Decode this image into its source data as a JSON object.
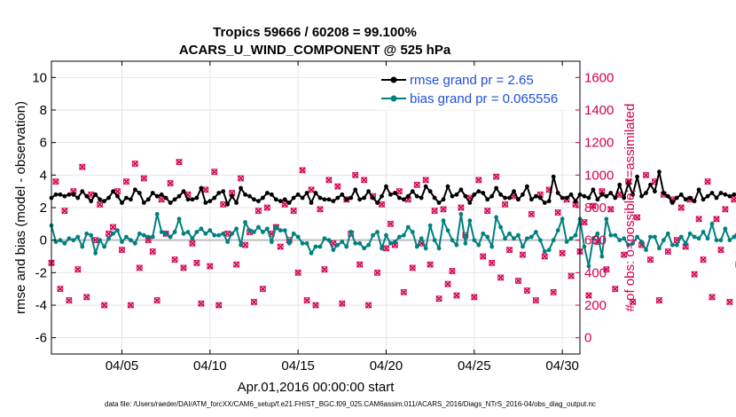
{
  "chart_data": {
    "type": "line",
    "title": "Tropics 59666 / 60208 = 99.100%",
    "subtitle": "ACARS_U_WIND_COMPONENT @ 525 hPa",
    "xlabel": "Apr.01,2016 00:00:00 start",
    "ylabel_left": "rmse and bias (model - observation)",
    "ylabel_right": "# of obs: o=possible; ×=assimilated",
    "footer": "data file: /Users/raeder/DAI/ATM_forcXX/CAM6_setup/f.e21.FHIST_BGC.f09_025.CAM6assim.011/ACARS_2016/Diags_NTrS_2016-04/obs_diag_output.nc",
    "xlim": [
      1,
      31
    ],
    "ylim_left": [
      -7,
      11
    ],
    "ylim_right": [
      -100,
      1700
    ],
    "xticks": [
      5,
      10,
      15,
      20,
      25,
      30
    ],
    "xtick_labels": [
      "04/05",
      "04/10",
      "04/15",
      "04/20",
      "04/25",
      "04/30"
    ],
    "yticks_left": [
      -6,
      -4,
      -2,
      0,
      2,
      4,
      6,
      8,
      10
    ],
    "yticks_right": [
      0,
      200,
      400,
      600,
      800,
      1000,
      1200,
      1400,
      1600
    ],
    "legend": [
      {
        "name": "rmse grand pr = 2.65",
        "color": "#000000"
      },
      {
        "name": "bias grand pr = 0.065556",
        "color": "#008080"
      }
    ],
    "time_start": 1.0,
    "time_step": 0.25,
    "series": [
      {
        "name": "rmse",
        "color": "#000000",
        "axis": "left",
        "values": [
          2.6,
          2.8,
          2.8,
          2.7,
          2.8,
          2.8,
          2.6,
          3.0,
          2.7,
          2.4,
          2.8,
          2.5,
          2.4,
          2.6,
          3.0,
          2.7,
          2.3,
          2.6,
          2.5,
          3.1,
          2.9,
          2.3,
          2.5,
          2.9,
          2.7,
          2.8,
          2.6,
          2.3,
          2.5,
          2.7,
          3.0,
          2.5,
          2.5,
          2.6,
          3.2,
          2.3,
          2.4,
          2.6,
          2.9,
          3.0,
          2.2,
          2.7,
          2.3,
          3.2,
          2.8,
          2.7,
          2.5,
          2.4,
          2.6,
          2.9,
          2.8,
          2.5,
          2.4,
          2.5,
          2.3,
          2.6,
          2.8,
          2.6,
          2.9,
          2.3,
          2.9,
          2.6,
          2.5,
          2.5,
          2.4,
          2.6,
          2.8,
          2.5,
          2.6,
          3.1,
          2.5,
          2.6,
          3.0,
          2.6,
          2.3,
          2.7,
          3.3,
          2.8,
          2.9,
          2.6,
          2.5,
          2.7,
          3.0,
          2.7,
          2.6,
          3.3,
          3.0,
          2.6,
          2.3,
          2.5,
          3.3,
          2.7,
          2.8,
          3.1,
          2.7,
          2.3,
          2.8,
          3.0,
          2.9,
          2.5,
          2.7,
          3.2,
          2.8,
          2.6,
          2.6,
          3.0,
          2.5,
          2.8,
          3.3,
          2.5,
          2.7,
          2.6,
          2.3,
          2.4,
          3.9,
          2.9,
          2.6,
          2.6,
          2.8,
          2.4,
          2.8,
          2.7,
          2.6,
          3.1,
          2.5,
          2.8,
          2.7,
          2.9,
          2.6,
          3.4,
          2.6,
          3.5,
          2.8,
          3.9,
          2.7,
          2.9,
          3.4,
          3.0,
          4.2,
          2.9,
          2.7,
          2.3,
          2.6,
          2.8,
          2.5,
          2.6,
          2.4,
          3.1,
          2.5,
          2.7,
          2.9,
          2.6,
          2.9,
          2.8,
          2.7,
          2.8,
          2.9,
          3.0,
          2.9,
          2.7,
          2.4,
          2.9,
          2.8,
          2.6,
          3.2,
          2.8,
          2.5,
          2.4,
          2.6,
          2.8,
          2.5,
          2.5,
          3.0,
          2.8,
          2.4,
          2.6,
          2.7,
          2.7,
          2.6,
          2.6,
          2.5,
          2.5,
          2.8,
          3.0,
          2.8,
          2.6,
          2.4,
          2.5,
          2.8,
          2.9,
          2.6,
          2.3,
          2.7,
          4.2,
          2.7,
          3.5,
          2.7,
          2.9,
          2.6,
          2.6,
          2.9,
          2.7,
          2.5,
          2.7,
          2.9,
          2.8,
          3.1,
          3.0,
          2.6,
          2.5,
          2.7,
          3.2,
          2.7,
          2.6,
          2.4,
          2.8,
          2.5,
          2.5,
          2.6,
          2.3,
          2.7,
          3.3,
          2.7,
          2.6,
          2.9,
          2.6,
          2.4,
          2.6,
          3.0,
          2.5,
          2.4,
          2.8,
          3.5,
          2.7,
          2.4,
          2.5
        ]
      },
      {
        "name": "bias",
        "color": "#008080",
        "axis": "left",
        "values": [
          0.9,
          -0.1,
          0.0,
          -0.2,
          0.1,
          0.0,
          0.2,
          -0.4,
          0.4,
          0.3,
          -0.8,
          0.0,
          -0.4,
          0.1,
          0.4,
          0.6,
          -0.1,
          0.2,
          0.0,
          -0.2,
          0.4,
          0.3,
          0.2,
          0.2,
          1.6,
          0.5,
          0.4,
          0.2,
          0.5,
          1.3,
          0.4,
          0.5,
          0.1,
          0.5,
          0.7,
          0.4,
          0.6,
          0.3,
          0.3,
          0.4,
          -0.1,
          0.4,
          0.7,
          -0.3,
          1.1,
          0.6,
          0.5,
          0.8,
          0.5,
          0.7,
          -0.1,
          0.8,
          0.6,
          0.6,
          -0.2,
          0.4,
          0.2,
          -0.2,
          -0.2,
          -0.8,
          -0.4,
          -0.4,
          0.1,
          0.0,
          -0.6,
          -0.3,
          -0.1,
          -0.4,
          0.5,
          -0.2,
          -0.2,
          -0.5,
          -0.3,
          0.3,
          0.5,
          -0.5,
          0.3,
          -0.2,
          -0.1,
          0.2,
          0.3,
          0.8,
          0.5,
          -0.4,
          0.1,
          -0.5,
          0.9,
          0.0,
          -0.5,
          1.2,
          0.6,
          0.0,
          -0.3,
          1.6,
          -0.2,
          1.2,
          0.0,
          -0.3,
          0.4,
          0.2,
          -0.4,
          1.4,
          0.8,
          0.1,
          0.4,
          0.1,
          0.3,
          -0.4,
          0.1,
          0.2,
          0.5,
          0.0,
          -0.7,
          -0.6,
          0.0,
          0.6,
          1.3,
          -0.1,
          0.1,
          0.3,
          1.3,
          -0.4,
          -1.6,
          0.1,
          0.4,
          -1.0,
          1.3,
          0.3,
          0.3,
          0.0,
          0.1,
          -0.3,
          -0.2,
          0.2,
          -0.1,
          -0.6,
          0.2,
          0.2,
          -0.5,
          0.0,
          0.4,
          -0.3,
          -0.3,
          0.2,
          -0.2,
          0.4,
          0.2,
          0.1,
          0.5,
          0.1,
          1.0,
          0.0,
          0.0,
          0.7,
          0.0,
          0.2,
          0.6,
          -0.8,
          0.5,
          -0.5,
          0.9,
          -0.1,
          0.9,
          0.4,
          0.7,
          -1.8,
          0.0,
          1.5,
          0.0,
          -0.2,
          -0.8,
          0.4,
          0.6,
          1.0,
          0.5,
          0.1,
          0.1,
          0.0,
          0.9,
          0.3,
          -0.6,
          0.0,
          0.7,
          0.1,
          -0.8,
          -0.2,
          0.8,
          0.4,
          1.2,
          -0.2,
          -0.5,
          0.4,
          -0.2,
          -0.2,
          0.0,
          0.3,
          0.5,
          -0.4,
          0.6,
          -0.3,
          0.2,
          0.6,
          -0.4,
          0.5,
          0.3,
          0.3,
          0.0,
          0.4,
          0.3,
          0.5,
          -0.5,
          0.5,
          -1.2,
          0.3,
          0.7,
          1.5,
          0.4,
          0.8,
          -0.9,
          -1.8,
          1.7,
          0.3,
          0.7,
          1.6,
          0.8,
          -1.3,
          1.4,
          0.5,
          0.4,
          0.0,
          -0.3,
          -0.6,
          -0.3,
          -0.4,
          0.0,
          -0.6,
          -0.5
        ]
      },
      {
        "name": "obs_possible",
        "color": "#d1004f",
        "marker": "o",
        "axis": "right",
        "values": [
          460,
          960,
          300,
          780,
          230,
          900,
          420,
          1050,
          250,
          880,
          600,
          820,
          200,
          640,
          680,
          900,
          540,
          960,
          200,
          1070,
          430,
          980,
          600,
          530,
          230,
          850,
          640,
          950,
          480,
          1080,
          430,
          880,
          580,
          460,
          210,
          910,
          440,
          1020,
          200,
          820,
          640,
          890,
          450,
          980,
          570,
          650,
          220,
          780,
          300,
          800,
          640,
          680,
          560,
          820,
          600,
          780,
          400,
          1030,
          230,
          910,
          200,
          790,
          420,
          970,
          580,
          930,
          210,
          850,
          640,
          1000,
          450,
          970,
          200,
          870,
          400,
          820,
          550,
          700,
          570,
          900,
          280,
          850,
          430,
          940,
          580,
          970,
          450,
          780,
          240,
          790,
          330,
          410,
          260,
          800,
          630,
          860,
          250,
          970,
          500,
          780,
          460,
          990,
          370,
          820,
          540,
          870,
          350,
          510,
          290,
          760,
          230,
          880,
          500,
          910,
          280,
          770,
          520,
          850,
          380,
          820,
          530,
          710,
          260,
          810,
          590,
          900,
          420,
          790,
          300,
          880,
          510,
          960,
          220,
          740,
          570,
          1000,
          480,
          960,
          230,
          880,
          530,
          850,
          600,
          800,
          560,
          850,
          390,
          730,
          480,
          960,
          250,
          730,
          540,
          790,
          220,
          850,
          450,
          950,
          220,
          670,
          300,
          790,
          570,
          1010,
          520,
          820,
          620,
          890,
          470,
          970,
          250,
          710,
          520,
          850,
          230,
          910,
          630,
          810,
          300,
          900,
          290,
          870,
          250,
          780,
          480,
          910,
          560,
          760,
          620,
          1000,
          350,
          740,
          410,
          800,
          260,
          820,
          600,
          950,
          480,
          870,
          570,
          900,
          230,
          730,
          630,
          960,
          430,
          880,
          500,
          780,
          530,
          990,
          620,
          800,
          470,
          890,
          500,
          760,
          580,
          850,
          390,
          740,
          540,
          870,
          560,
          920,
          380,
          870,
          460,
          820,
          600,
          640,
          0,
          800
        ]
      },
      {
        "name": "obs_assimilated",
        "color": "#d1004f",
        "marker": "x",
        "axis": "right",
        "values": [
          460,
          960,
          300,
          780,
          230,
          900,
          420,
          1050,
          250,
          880,
          600,
          820,
          200,
          640,
          680,
          900,
          540,
          960,
          200,
          1070,
          430,
          980,
          600,
          530,
          230,
          850,
          640,
          950,
          480,
          1080,
          430,
          880,
          580,
          460,
          210,
          910,
          440,
          1020,
          200,
          820,
          640,
          890,
          450,
          980,
          570,
          650,
          220,
          780,
          300,
          800,
          640,
          680,
          560,
          820,
          600,
          780,
          400,
          1030,
          230,
          910,
          200,
          790,
          420,
          970,
          580,
          930,
          210,
          850,
          640,
          1000,
          450,
          970,
          200,
          870,
          400,
          820,
          550,
          700,
          570,
          900,
          280,
          850,
          430,
          940,
          580,
          970,
          450,
          780,
          240,
          790,
          330,
          410,
          260,
          800,
          630,
          860,
          250,
          970,
          500,
          780,
          460,
          990,
          370,
          820,
          540,
          870,
          350,
          510,
          290,
          760,
          230,
          880,
          500,
          910,
          280,
          770,
          520,
          850,
          380,
          820,
          530,
          710,
          260,
          810,
          590,
          900,
          420,
          790,
          300,
          880,
          510,
          960,
          220,
          740,
          570,
          1000,
          480,
          960,
          230,
          880,
          530,
          850,
          600,
          800,
          560,
          850,
          390,
          730,
          480,
          960,
          250,
          730,
          540,
          790,
          220,
          850,
          450,
          950,
          220,
          670,
          300,
          790,
          570,
          1010,
          520,
          820,
          620,
          890,
          470,
          970,
          250,
          710,
          520,
          850,
          230,
          910,
          630,
          810,
          300,
          900,
          290,
          870,
          250,
          780,
          480,
          910,
          560,
          760,
          620,
          1000,
          350,
          740,
          410,
          800,
          260,
          820,
          600,
          950,
          480,
          870,
          570,
          900,
          230,
          730,
          630,
          960,
          430,
          880,
          500,
          780,
          530,
          990,
          620,
          800,
          470,
          890,
          500,
          760,
          580,
          850,
          390,
          740,
          540,
          870,
          560,
          920,
          380,
          870,
          460,
          820,
          600,
          640,
          0,
          800
        ]
      }
    ]
  }
}
